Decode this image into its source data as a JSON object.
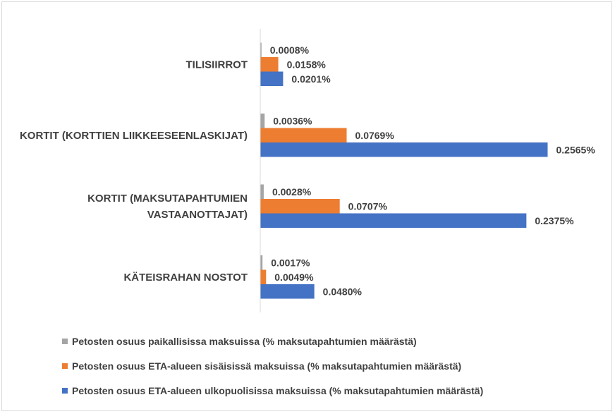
{
  "chart_data": {
    "type": "bar",
    "orientation": "horizontal",
    "categories": [
      [
        "TILISIIRROT"
      ],
      [
        "KORTIT (KORTTIEN LIIKKEESEENLASKIJAT)"
      ],
      [
        "KORTIT (MAKSUTAPAHTUMIEN",
        "VASTAANOTTAJAT)"
      ],
      [
        "KÄTEISRAHAN NOSTOT"
      ]
    ],
    "series": [
      {
        "name": "Petosten osuus paikallisissa maksuissa (% maksutapahtumien määrästä)",
        "color": "#a5a5a5",
        "values": [
          0.0008,
          0.0036,
          0.0028,
          0.0017
        ],
        "labels": [
          "0.0008%",
          "0.0036%",
          "0.0028%",
          "0.0017%"
        ]
      },
      {
        "name": "Petosten osuus ETA-alueen sisäisissä maksuissa (% maksutapahtumien määrästä)",
        "color": "#ed7d31",
        "values": [
          0.0158,
          0.0769,
          0.0707,
          0.0049
        ],
        "labels": [
          "0.0158%",
          "0.0769%",
          "0.0707%",
          "0.0049%"
        ]
      },
      {
        "name": "Petosten osuus ETA-alueen ulkopuolisissa maksuissa (% maksutapahtumien määrästä)",
        "color": "#4472c4",
        "values": [
          0.0201,
          0.2565,
          0.2375,
          0.048
        ],
        "labels": [
          "0.0201%",
          "0.2565%",
          "0.2375%",
          "0.0480%"
        ]
      }
    ],
    "xlim": [
      0,
      0.26
    ],
    "grid": false,
    "legend_position": "bottom-left",
    "axis_color": "#d9d9d9",
    "text_color": "#404040"
  }
}
